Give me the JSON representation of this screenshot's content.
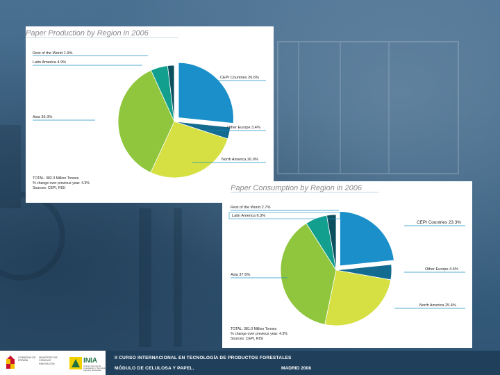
{
  "colors": {
    "cepi": "#1a8fc9",
    "other_europe": "#136b8f",
    "north_america": "#d6e042",
    "asia": "#8fc63e",
    "latin_america": "#139f8e",
    "rest_of_world": "#0c5060"
  },
  "chart_data": [
    {
      "type": "pie",
      "title": "Paper Production by Region in 2006",
      "series": [
        {
          "name": "CEPI Countries",
          "label": "CEPI Countries 26.6%",
          "value": 26.6,
          "exploded": true
        },
        {
          "name": "Other Europe",
          "label": "Other Europe 3.4%",
          "value": 3.4
        },
        {
          "name": "North America",
          "label": "North America 26.9%",
          "value": 26.9
        },
        {
          "name": "Asia",
          "label": "Asia 36.3%",
          "value": 36.3
        },
        {
          "name": "Latin America",
          "label": "Latin America 4.9%",
          "value": 4.9
        },
        {
          "name": "Rest of the World",
          "label": "Rest of the World 1.9%",
          "value": 1.9
        }
      ],
      "notes": [
        "TOTAL: 382.3 Million Tonnes",
        "% change over previous year: 4.3%",
        "Sources: CEPI, RISI"
      ]
    },
    {
      "type": "pie",
      "title": "Paper Consumption by Region in 2006",
      "series": [
        {
          "name": "CEPI Countries",
          "label": "CEPI Countries 23.3%",
          "value": 23.3,
          "exploded": true
        },
        {
          "name": "Other Europe",
          "label": "Other Europe 4.4%",
          "value": 4.4
        },
        {
          "name": "North America",
          "label": "North America 25.4%",
          "value": 25.4
        },
        {
          "name": "Asia",
          "label": "Asia 37.6%",
          "value": 37.6
        },
        {
          "name": "Latin America",
          "label": "Latin America 6.3%",
          "value": 6.3
        },
        {
          "name": "Rest of the World",
          "label": "Rest of the World 2.7%",
          "value": 2.7
        }
      ],
      "notes": [
        "TOTAL: 381.0 Million Tonnes",
        "% change over previous year: 4.3%",
        "Sources: CEPI, RISI"
      ]
    }
  ],
  "footer": {
    "line1": "II CURSO INTERNACIONAL EN TECNOLOGÍA DE PRODUCTOS FORESTALES",
    "line2": "MÓDULO DE CELULOSA Y PAPEL.",
    "city": "MADRID 2008",
    "gov": "GOBIERNO DE ESPAÑA",
    "ministry": "MINISTERIO DE CIENCIA E INNOVACIÓN",
    "inia": "INIA",
    "inia_sub": "Instituto Nacional de Investigación y Tecnología Agraria y Alimentaria"
  }
}
